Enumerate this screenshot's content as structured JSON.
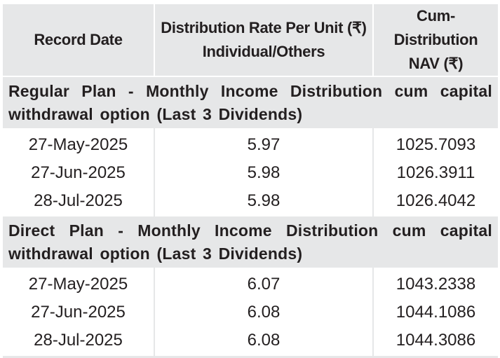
{
  "table": {
    "headers": {
      "record_date": "Record Date",
      "rate_line1": "Distribution Rate Per Unit (₹)",
      "rate_line2": "Individual/Others",
      "nav_line1": "Cum-Distribution",
      "nav_line2": "NAV (₹)"
    },
    "sections": [
      {
        "title_line1": "Regular Plan - Monthly Income Distribution cum capital",
        "title_line2": "withdrawal option (Last 3 Dividends)",
        "rows": [
          {
            "date": "27-May-2025",
            "rate": "5.97",
            "nav": "1025.7093"
          },
          {
            "date": "27-Jun-2025",
            "rate": "5.98",
            "nav": "1026.3911"
          },
          {
            "date": "28-Jul-2025",
            "rate": "5.98",
            "nav": "1026.4042"
          }
        ]
      },
      {
        "title_line1": "Direct Plan - Monthly Income Distribution cum capital",
        "title_line2": "withdrawal option (Last 3 Dividends)",
        "rows": [
          {
            "date": "27-May-2025",
            "rate": "6.07",
            "nav": "1043.2338"
          },
          {
            "date": "27-Jun-2025",
            "rate": "6.08",
            "nav": "1044.1086"
          },
          {
            "date": "28-Jul-2025",
            "rate": "6.08",
            "nav": "1044.3086"
          }
        ]
      }
    ]
  }
}
